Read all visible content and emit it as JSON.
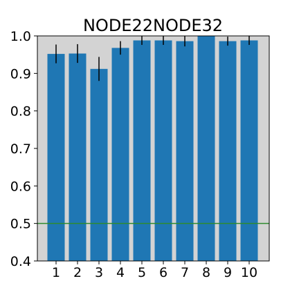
{
  "chart_data": {
    "type": "bar",
    "title": "NODE22NODE32",
    "xlabel": "",
    "ylabel": "",
    "categories": [
      "1",
      "2",
      "3",
      "4",
      "5",
      "6",
      "7",
      "8",
      "9",
      "10"
    ],
    "values": [
      0.952,
      0.953,
      0.912,
      0.968,
      0.988,
      0.988,
      0.986,
      1.0,
      0.986,
      0.988
    ],
    "errors": [
      0.025,
      0.025,
      0.032,
      0.018,
      0.012,
      0.012,
      0.014,
      0.0,
      0.012,
      0.012
    ],
    "ylim": [
      0.4,
      1.0
    ],
    "yticks": [
      "0.4",
      "0.5",
      "0.6",
      "0.7",
      "0.8",
      "0.9",
      "1.0"
    ],
    "reference_line": 0.5,
    "grid": false,
    "colors": {
      "bar": "#1f77b4",
      "error_bar": "#000000",
      "reference_line": "#2e8b2e",
      "plot_background": "#d3d3d3"
    }
  }
}
